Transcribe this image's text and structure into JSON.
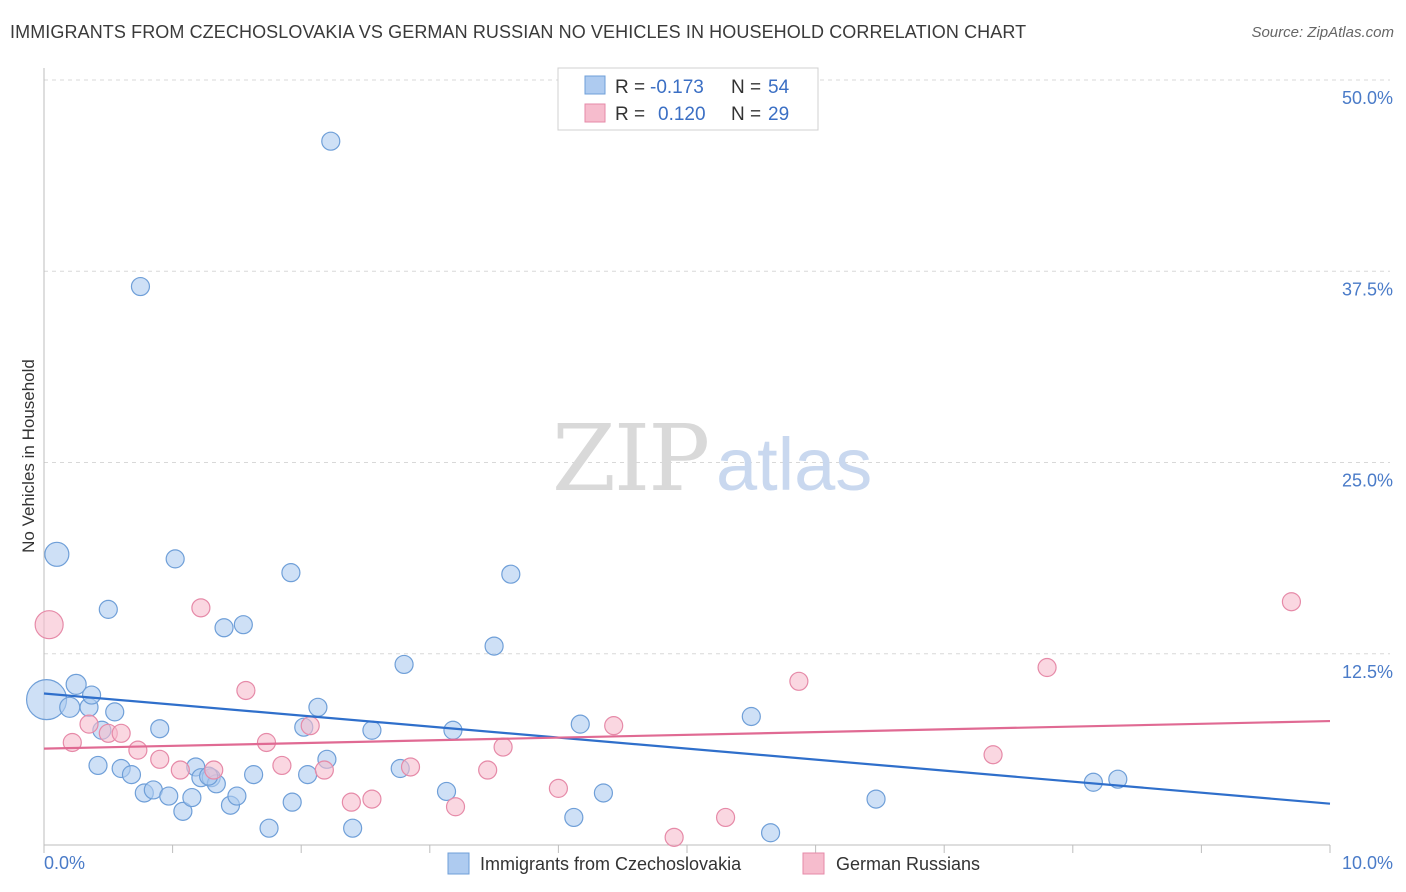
{
  "header": {
    "title": "IMMIGRANTS FROM CZECHOSLOVAKIA VS GERMAN RUSSIAN NO VEHICLES IN HOUSEHOLD CORRELATION CHART",
    "source": "Source: ZipAtlas.com"
  },
  "watermark": {
    "part1": "ZIP",
    "part2": "atlas"
  },
  "legend_box": {
    "rows": [
      {
        "r_label": "R =",
        "r_value": "-0.173",
        "n_label": "N =",
        "n_value": "54"
      },
      {
        "r_label": "R =",
        "r_value": "0.120",
        "n_label": "N =",
        "n_value": "29"
      }
    ]
  },
  "colors": {
    "blue_fill": "#aecbf0",
    "blue_stroke": "#6f9fd8",
    "blue_line": "#2f6fcb",
    "pink_fill": "#f6bccd",
    "pink_stroke": "#e68aa8",
    "pink_line": "#e06a93",
    "grid": "#d8d8d8",
    "tick_label": "#4a7bc8"
  },
  "chart_data": {
    "type": "scatter",
    "title": "IMMIGRANTS FROM CZECHOSLOVAKIA VS GERMAN RUSSIAN NO VEHICLES IN HOUSEHOLD CORRELATION CHART",
    "xlabel": "",
    "ylabel": "No Vehicles in Household",
    "xlim": [
      0,
      10
    ],
    "ylim": [
      0,
      50
    ],
    "x_tick_labels": [
      "0.0%",
      "10.0%"
    ],
    "y_ticks": [
      12.5,
      25.0,
      37.5,
      50.0
    ],
    "y_tick_labels": [
      "12.5%",
      "25.0%",
      "37.5%",
      "50.0%"
    ],
    "grid": true,
    "legend_placement": "top-center",
    "series": [
      {
        "name": "Immigrants from Czechoslovakia",
        "color": "#aecbf0",
        "points": [
          [
            0.02,
            9.5,
            20
          ],
          [
            0.1,
            19.0,
            12
          ],
          [
            0.2,
            9.0,
            10
          ],
          [
            0.25,
            10.5,
            10
          ],
          [
            0.35,
            9.0,
            9
          ],
          [
            0.37,
            9.8,
            9
          ],
          [
            0.42,
            5.2,
            9
          ],
          [
            0.45,
            7.5,
            9
          ],
          [
            0.5,
            15.4,
            9
          ],
          [
            0.55,
            8.7,
            9
          ],
          [
            0.6,
            5.0,
            9
          ],
          [
            0.68,
            4.6,
            9
          ],
          [
            0.75,
            36.5,
            9
          ],
          [
            0.78,
            3.4,
            9
          ],
          [
            0.85,
            3.6,
            9
          ],
          [
            0.9,
            7.6,
            9
          ],
          [
            0.97,
            3.2,
            9
          ],
          [
            1.02,
            18.7,
            9
          ],
          [
            1.08,
            2.2,
            9
          ],
          [
            1.15,
            3.1,
            9
          ],
          [
            1.18,
            5.1,
            9
          ],
          [
            1.22,
            4.4,
            9
          ],
          [
            1.3,
            4.4,
            9
          ],
          [
            1.34,
            4.0,
            9
          ],
          [
            1.4,
            14.2,
            9
          ],
          [
            1.45,
            2.6,
            9
          ],
          [
            1.5,
            3.2,
            9
          ],
          [
            1.55,
            14.4,
            9
          ],
          [
            1.63,
            4.6,
            9
          ],
          [
            1.75,
            1.1,
            9
          ],
          [
            1.93,
            2.8,
            9
          ],
          [
            1.92,
            17.8,
            9
          ],
          [
            2.02,
            7.7,
            9
          ],
          [
            2.05,
            4.6,
            9
          ],
          [
            2.13,
            9.0,
            9
          ],
          [
            2.2,
            5.6,
            9
          ],
          [
            2.23,
            46.0,
            9
          ],
          [
            2.4,
            1.1,
            9
          ],
          [
            2.55,
            7.5,
            9
          ],
          [
            2.77,
            5.0,
            9
          ],
          [
            2.8,
            11.8,
            9
          ],
          [
            3.13,
            3.5,
            9
          ],
          [
            3.18,
            7.5,
            9
          ],
          [
            3.5,
            13.0,
            9
          ],
          [
            3.63,
            17.7,
            9
          ],
          [
            4.12,
            1.8,
            9
          ],
          [
            4.17,
            7.9,
            9
          ],
          [
            4.35,
            3.4,
            9
          ],
          [
            5.5,
            8.4,
            9
          ],
          [
            5.65,
            0.8,
            9
          ],
          [
            6.47,
            3.0,
            9
          ],
          [
            8.16,
            4.1,
            9
          ],
          [
            8.35,
            4.3,
            9
          ],
          [
            1.28,
            4.5,
            9
          ]
        ]
      },
      {
        "name": "German Russians",
        "color": "#f6bccd",
        "points": [
          [
            0.04,
            14.4,
            14
          ],
          [
            0.22,
            6.7,
            9
          ],
          [
            0.35,
            7.9,
            9
          ],
          [
            0.5,
            7.3,
            9
          ],
          [
            0.6,
            7.3,
            9
          ],
          [
            0.73,
            6.2,
            9
          ],
          [
            0.9,
            5.6,
            9
          ],
          [
            1.06,
            4.9,
            9
          ],
          [
            1.22,
            15.5,
            9
          ],
          [
            1.32,
            4.9,
            9
          ],
          [
            1.57,
            10.1,
            9
          ],
          [
            1.73,
            6.7,
            9
          ],
          [
            1.85,
            5.2,
            9
          ],
          [
            2.07,
            7.8,
            9
          ],
          [
            2.18,
            4.9,
            9
          ],
          [
            2.39,
            2.8,
            9
          ],
          [
            2.55,
            3.0,
            9
          ],
          [
            2.85,
            5.1,
            9
          ],
          [
            3.2,
            2.5,
            9
          ],
          [
            3.45,
            4.9,
            9
          ],
          [
            3.57,
            6.4,
            9
          ],
          [
            4.0,
            3.7,
            9
          ],
          [
            4.43,
            7.8,
            9
          ],
          [
            4.9,
            0.5,
            9
          ],
          [
            5.3,
            1.8,
            9
          ],
          [
            5.87,
            10.7,
            9
          ],
          [
            7.38,
            5.9,
            9
          ],
          [
            7.8,
            11.6,
            9
          ],
          [
            9.7,
            15.9,
            9
          ]
        ]
      }
    ],
    "trend_lines": [
      {
        "series": "Immigrants from Czechoslovakia",
        "start": [
          0,
          9.9
        ],
        "end": [
          10,
          2.7
        ],
        "color": "#2f6fcb"
      },
      {
        "series": "German Russians",
        "start": [
          0,
          6.3
        ],
        "end": [
          10,
          8.1
        ],
        "color": "#e06a93"
      }
    ]
  }
}
